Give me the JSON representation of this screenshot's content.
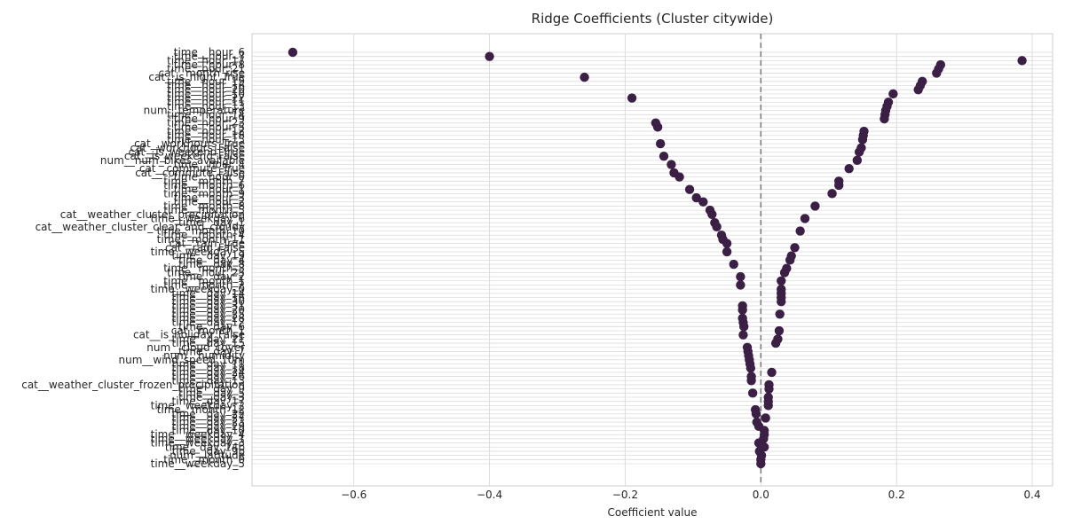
{
  "chart_data": {
    "type": "scatter",
    "title": "Ridge Coefficients (Cluster citywide)",
    "xlabel": "Coefficient value",
    "ylabel": "",
    "xlim": [
      -0.75,
      0.43
    ],
    "xticks": [
      -0.6,
      -0.4,
      -0.2,
      0.0,
      0.2,
      0.4
    ],
    "xtick_labels": [
      "−0.6",
      "−0.4",
      "−0.2",
      "0.0",
      "0.2",
      "0.4"
    ],
    "grid": true,
    "zero_line": true,
    "marker_color": "#3b1f45",
    "points": [
      {
        "label": "time__hour_6",
        "value": -0.69
      },
      {
        "label": "time__hour_7",
        "value": -0.4
      },
      {
        "label": "time__hour_17",
        "value": 0.385
      },
      {
        "label": "time__hour_8",
        "value": 0.265
      },
      {
        "label": "time__hour_21",
        "value": 0.262
      },
      {
        "label": "cat__month_rise",
        "value": 0.259
      },
      {
        "label": "cat__is_night_True",
        "value": -0.26
      },
      {
        "label": "time__hour_19",
        "value": 0.238
      },
      {
        "label": "time__hour_16",
        "value": 0.235
      },
      {
        "label": "time__hour_20",
        "value": 0.232
      },
      {
        "label": "time__hour_10",
        "value": 0.195
      },
      {
        "label": "time__hour_22",
        "value": -0.19
      },
      {
        "label": "time__hour_11",
        "value": 0.188
      },
      {
        "label": "time__hour_13",
        "value": 0.186
      },
      {
        "label": "num__temperature",
        "value": 0.184
      },
      {
        "label": "time__hour_14",
        "value": 0.183
      },
      {
        "label": "time__hour_9",
        "value": 0.182
      },
      {
        "label": "time__hour_23",
        "value": -0.155
      },
      {
        "label": "time__hour_5",
        "value": -0.152
      },
      {
        "label": "time__hour_12",
        "value": 0.152
      },
      {
        "label": "time__hour_18",
        "value": 0.151
      },
      {
        "label": "time__hour_15",
        "value": 0.15
      },
      {
        "label": "cat__workhours_True",
        "value": -0.148
      },
      {
        "label": "cat__workhours_False",
        "value": 0.148
      },
      {
        "label": "cat__is_weekend_True",
        "value": 0.145
      },
      {
        "label": "cat__is_weekend_False",
        "value": -0.143
      },
      {
        "label": "num__num_bikes_available",
        "value": 0.142
      },
      {
        "label": "time__hour_4",
        "value": -0.132
      },
      {
        "label": "cat__commute_True",
        "value": 0.13
      },
      {
        "label": "cat__commute_False",
        "value": -0.128
      },
      {
        "label": "time__hour_0",
        "value": -0.12
      },
      {
        "label": "time__month_7",
        "value": 0.115
      },
      {
        "label": "time__month_6",
        "value": 0.115
      },
      {
        "label": "time__hour_1",
        "value": -0.105
      },
      {
        "label": "time__month_9",
        "value": 0.105
      },
      {
        "label": "time__hour_3",
        "value": -0.095
      },
      {
        "label": "time__hour_2",
        "value": -0.085
      },
      {
        "label": "time__month_8",
        "value": 0.08
      },
      {
        "label": "time__month_5",
        "value": -0.075
      },
      {
        "label": "cat__weather_cluster_precipitation",
        "value": -0.072
      },
      {
        "label": "time__weekday_6",
        "value": 0.065
      },
      {
        "label": "time__day_1",
        "value": -0.068
      },
      {
        "label": "cat__weather_cluster_clear_and_cloudy",
        "value": -0.065
      },
      {
        "label": "time__month_10",
        "value": 0.058
      },
      {
        "label": "time__month_4",
        "value": -0.058
      },
      {
        "label": "time__month_11",
        "value": -0.056
      },
      {
        "label": "cat__rain_True",
        "value": -0.05
      },
      {
        "label": "cat__rain_False",
        "value": 0.05
      },
      {
        "label": "time__weekday_5",
        "value": -0.05
      },
      {
        "label": "time__day_19",
        "value": 0.045
      },
      {
        "label": "time__day_4",
        "value": 0.043
      },
      {
        "label": "time__day_8",
        "value": -0.04
      },
      {
        "label": "time__month_3",
        "value": 0.038
      },
      {
        "label": "time__hour_25",
        "value": 0.035
      },
      {
        "label": "time__day_2",
        "value": -0.03
      },
      {
        "label": "time__month_1",
        "value": 0.03
      },
      {
        "label": "time__month_2",
        "value": -0.03
      },
      {
        "label": "time__weekday_0",
        "value": 0.03
      },
      {
        "label": "time__day_14",
        "value": 0.03
      },
      {
        "label": "time__day_16",
        "value": 0.03
      },
      {
        "label": "time__day_30",
        "value": 0.03
      },
      {
        "label": "time__day_31",
        "value": -0.027
      },
      {
        "label": "time__day_20",
        "value": -0.027
      },
      {
        "label": "time__day_25",
        "value": 0.028
      },
      {
        "label": "time__day_28",
        "value": -0.027
      },
      {
        "label": "time__day_12",
        "value": -0.026
      },
      {
        "label": "time__day_6",
        "value": -0.025
      },
      {
        "label": "cat__month_1",
        "value": 0.027
      },
      {
        "label": "cat__is_holiday_False",
        "value": -0.026
      },
      {
        "label": "time__day_21",
        "value": 0.025
      },
      {
        "label": "time__day_15",
        "value": 0.022
      },
      {
        "label": "num__cloud_cover",
        "value": -0.02
      },
      {
        "label": "time__day_7",
        "value": -0.019
      },
      {
        "label": "num__humidity",
        "value": -0.018
      },
      {
        "label": "num__wind_speed_10m",
        "value": -0.017
      },
      {
        "label": "time__day_11",
        "value": -0.016
      },
      {
        "label": "time__day_18",
        "value": -0.015
      },
      {
        "label": "time__day_24",
        "value": 0.016
      },
      {
        "label": "time__day_26",
        "value": -0.014
      },
      {
        "label": "time__day_13",
        "value": -0.014
      },
      {
        "label": "cat__weather_cluster_frozen_precipitation",
        "value": 0.012
      },
      {
        "label": "time__day_9",
        "value": 0.012
      },
      {
        "label": "time__day_5",
        "value": -0.012
      },
      {
        "label": "time__day_3",
        "value": 0.011
      },
      {
        "label": "time__day_17",
        "value": 0.011
      },
      {
        "label": "time__weekday_2",
        "value": 0.011
      },
      {
        "label": "time__month_12",
        "value": -0.008
      },
      {
        "label": "time__day_22",
        "value": -0.007
      },
      {
        "label": "time__day_27",
        "value": 0.007
      },
      {
        "label": "time__day_23",
        "value": -0.006
      },
      {
        "label": "time__day_29",
        "value": -0.003
      },
      {
        "label": "time__day_10",
        "value": 0.005
      },
      {
        "label": "time__weekday_4",
        "value": 0.005
      },
      {
        "label": "time__weekday_1",
        "value": 0.004
      },
      {
        "label": "time__weekday_3",
        "value": -0.003
      },
      {
        "label": "time__day_14b",
        "value": 0.005
      },
      {
        "label": "time__day_9b",
        "value": -0.002
      },
      {
        "label": "num__latitude",
        "value": 0.001
      },
      {
        "label": "time__month_0",
        "value": 0.0
      },
      {
        "label": "time__weekday_5",
        "value": 0.0
      }
    ]
  }
}
